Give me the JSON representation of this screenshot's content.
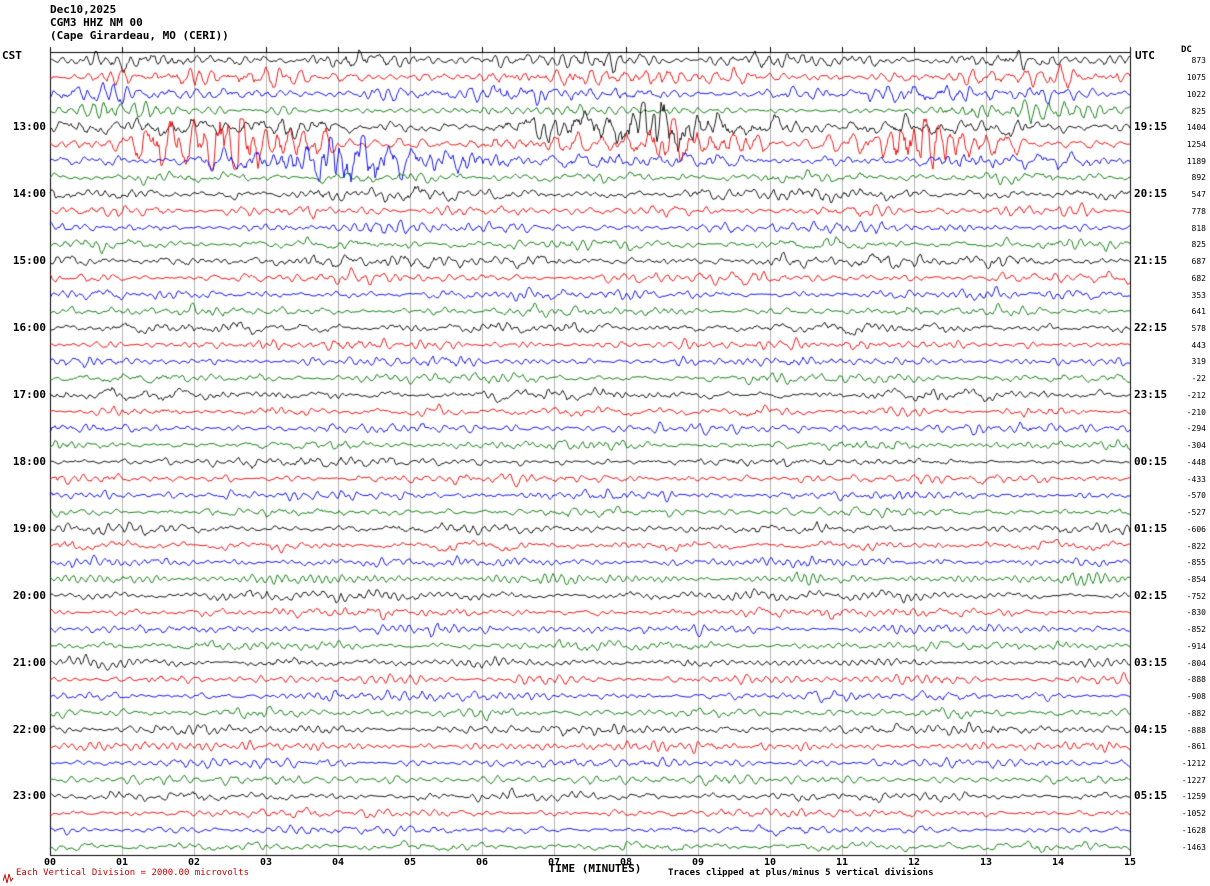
{
  "header": {
    "date": "Dec10,2025",
    "station": "CGM3 HHZ NM 00",
    "location": "(Cape Girardeau, MO (CERI))"
  },
  "axes": {
    "left_header": "CST",
    "right_header": "UTC",
    "dc_header": "DC",
    "x_label": "TIME (MINUTES)",
    "x_ticks": [
      "00",
      "01",
      "02",
      "03",
      "04",
      "05",
      "06",
      "07",
      "08",
      "09",
      "10",
      "11",
      "12",
      "13",
      "14",
      "15"
    ]
  },
  "footer": {
    "left": "Each Vertical Division = 2000.00 microvolts",
    "right": "Traces clipped at plus/minus 5 vertical divisions"
  },
  "colors": {
    "grid": "#b4b4b4",
    "frame": "#000000",
    "accent_red": "#cc0000"
  },
  "chart_data": {
    "type": "line",
    "title": "CGM3 HHZ NM 00 helicorder (Cape Girardeau, MO (CERI)) Dec10,2025",
    "xlabel": "TIME (MINUTES)",
    "x_range": [
      0,
      15
    ],
    "minutes_per_row": 15,
    "grid": true,
    "color_cycle": [
      "#000000",
      "#ee0000",
      "#0000ee",
      "#007700"
    ],
    "rows": [
      {
        "dc": 873,
        "amp": 7.5
      },
      {
        "dc": 1075,
        "amp": 7.5
      },
      {
        "dc": 1022,
        "amp": 7.0
      },
      {
        "dc": 825,
        "amp": 4.5,
        "bursts": [
          [
            1.0,
            0.3,
            1.5
          ],
          [
            13.5,
            0.8,
            1.2
          ]
        ]
      },
      {
        "cst": "13:00",
        "utc": "19:15",
        "dc": 1404,
        "amp": 7.5,
        "bursts": [
          [
            8.6,
            1.2,
            2.2
          ],
          [
            0.9,
            0.4,
            1.5
          ]
        ]
      },
      {
        "dc": 1254,
        "amp": 7.0,
        "bursts": [
          [
            2.6,
            0.9,
            3.2
          ],
          [
            9.0,
            0.5,
            3.8
          ],
          [
            12.2,
            0.5,
            2.6
          ]
        ]
      },
      {
        "dc": 1189,
        "amp": 6.5,
        "bursts": [
          [
            4.7,
            1.0,
            3.5
          ]
        ]
      },
      {
        "dc": 892,
        "amp": 5.0
      },
      {
        "cst": "14:00",
        "utc": "20:15",
        "dc": 547,
        "amp": 6.0
      },
      {
        "dc": 778,
        "amp": 5.0
      },
      {
        "dc": 818,
        "amp": 5.0
      },
      {
        "dc": 825,
        "amp": 5.0
      },
      {
        "cst": "15:00",
        "utc": "21:15",
        "dc": 687,
        "amp": 6.0
      },
      {
        "dc": 682,
        "amp": 5.0
      },
      {
        "dc": 353,
        "amp": 4.5
      },
      {
        "dc": 641,
        "amp": 4.5
      },
      {
        "cst": "16:00",
        "utc": "22:15",
        "dc": 578,
        "amp": 5.5
      },
      {
        "dc": 443,
        "amp": 4.5
      },
      {
        "dc": 319,
        "amp": 4.5
      },
      {
        "dc": -22,
        "amp": 4.5
      },
      {
        "cst": "17:00",
        "utc": "23:15",
        "dc": -212,
        "amp": 5.0
      },
      {
        "dc": -210,
        "amp": 4.5
      },
      {
        "dc": -294,
        "amp": 4.5
      },
      {
        "dc": -304,
        "amp": 4.5
      },
      {
        "cst": "18:00",
        "utc": "00:15",
        "dc": -448,
        "amp": 5.0
      },
      {
        "dc": -433,
        "amp": 4.5
      },
      {
        "dc": -570,
        "amp": 4.5
      },
      {
        "dc": -527,
        "amp": 4.5
      },
      {
        "cst": "19:00",
        "utc": "01:15",
        "dc": -606,
        "amp": 5.0
      },
      {
        "dc": -822,
        "amp": 4.5
      },
      {
        "dc": -855,
        "amp": 4.5
      },
      {
        "dc": -854,
        "amp": 4.5
      },
      {
        "cst": "20:00",
        "utc": "02:15",
        "dc": -752,
        "amp": 5.0
      },
      {
        "dc": -830,
        "amp": 4.5
      },
      {
        "dc": -852,
        "amp": 4.5
      },
      {
        "dc": -914,
        "amp": 4.5
      },
      {
        "cst": "21:00",
        "utc": "03:15",
        "dc": -804,
        "amp": 5.0
      },
      {
        "dc": -888,
        "amp": 4.5
      },
      {
        "dc": -908,
        "amp": 4.5
      },
      {
        "dc": -882,
        "amp": 4.5
      },
      {
        "cst": "22:00",
        "utc": "04:15",
        "dc": -888,
        "amp": 5.0
      },
      {
        "dc": -861,
        "amp": 4.5
      },
      {
        "dc": -1212,
        "amp": 4.5
      },
      {
        "dc": -1227,
        "amp": 4.5
      },
      {
        "cst": "23:00",
        "utc": "05:15",
        "dc": -1259,
        "amp": 4.5
      },
      {
        "dc": -1052,
        "amp": 4.2
      },
      {
        "dc": -1628,
        "amp": 4.2
      },
      {
        "dc": -1463,
        "amp": 4.2
      }
    ]
  }
}
